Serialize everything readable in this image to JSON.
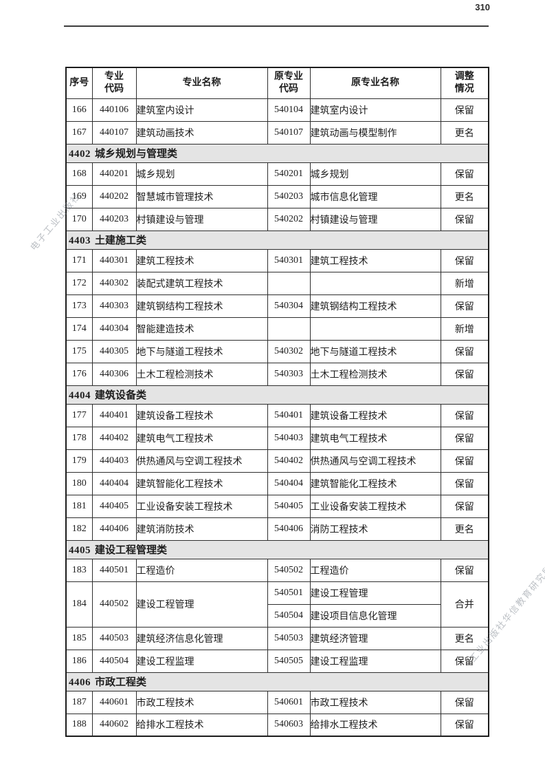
{
  "page": {
    "number": "310"
  },
  "watermark": {
    "left_text": "电子工业出版社",
    "right_text": "工业出版社华信教育研究所",
    "full_text": "电子工业出版社华信教育研究所",
    "color": "#7d848e"
  },
  "table": {
    "headers": [
      "序号",
      "专业\n代码",
      "专业名称",
      "原专业\n代码",
      "原专业名称",
      "调整\n情况"
    ],
    "section_gray": "#e4e4e4",
    "rows": [
      {
        "type": "data",
        "seq": "166",
        "code": "440106",
        "name": "建筑室内设计",
        "old_code": "540104",
        "old_name": "建筑室内设计",
        "status": "保留"
      },
      {
        "type": "data",
        "seq": "167",
        "code": "440107",
        "name": "建筑动画技术",
        "old_code": "540107",
        "old_name": "建筑动画与模型制作",
        "status": "更名"
      },
      {
        "type": "section",
        "num": "4402",
        "name": "城乡规划与管理类"
      },
      {
        "type": "data",
        "seq": "168",
        "code": "440201",
        "name": "城乡规划",
        "old_code": "540201",
        "old_name": "城乡规划",
        "status": "保留"
      },
      {
        "type": "data",
        "seq": "169",
        "code": "440202",
        "name": "智慧城市管理技术",
        "old_code": "540203",
        "old_name": "城市信息化管理",
        "status": "更名"
      },
      {
        "type": "data",
        "seq": "170",
        "code": "440203",
        "name": "村镇建设与管理",
        "old_code": "540202",
        "old_name": "村镇建设与管理",
        "status": "保留"
      },
      {
        "type": "section",
        "num": "4403",
        "name": "土建施工类"
      },
      {
        "type": "data",
        "seq": "171",
        "code": "440301",
        "name": "建筑工程技术",
        "old_code": "540301",
        "old_name": "建筑工程技术",
        "status": "保留"
      },
      {
        "type": "data",
        "seq": "172",
        "code": "440302",
        "name": "装配式建筑工程技术",
        "old_code": "",
        "old_name": "",
        "status": "新增"
      },
      {
        "type": "data",
        "seq": "173",
        "code": "440303",
        "name": "建筑钢结构工程技术",
        "old_code": "540304",
        "old_name": "建筑钢结构工程技术",
        "status": "保留"
      },
      {
        "type": "data",
        "seq": "174",
        "code": "440304",
        "name": "智能建造技术",
        "old_code": "",
        "old_name": "",
        "status": "新增"
      },
      {
        "type": "data",
        "seq": "175",
        "code": "440305",
        "name": "地下与隧道工程技术",
        "old_code": "540302",
        "old_name": "地下与隧道工程技术",
        "status": "保留"
      },
      {
        "type": "data",
        "seq": "176",
        "code": "440306",
        "name": "土木工程检测技术",
        "old_code": "540303",
        "old_name": "土木工程检测技术",
        "status": "保留"
      },
      {
        "type": "section",
        "num": "4404",
        "name": "建筑设备类"
      },
      {
        "type": "data",
        "seq": "177",
        "code": "440401",
        "name": "建筑设备工程技术",
        "old_code": "540401",
        "old_name": "建筑设备工程技术",
        "status": "保留"
      },
      {
        "type": "data",
        "seq": "178",
        "code": "440402",
        "name": "建筑电气工程技术",
        "old_code": "540403",
        "old_name": "建筑电气工程技术",
        "status": "保留"
      },
      {
        "type": "data",
        "seq": "179",
        "code": "440403",
        "name": "供热通风与空调工程技术",
        "old_code": "540402",
        "old_name": "供热通风与空调工程技术",
        "status": "保留"
      },
      {
        "type": "data",
        "seq": "180",
        "code": "440404",
        "name": "建筑智能化工程技术",
        "old_code": "540404",
        "old_name": "建筑智能化工程技术",
        "status": "保留"
      },
      {
        "type": "data",
        "seq": "181",
        "code": "440405",
        "name": "工业设备安装工程技术",
        "old_code": "540405",
        "old_name": "工业设备安装工程技术",
        "status": "保留"
      },
      {
        "type": "data",
        "seq": "182",
        "code": "440406",
        "name": "建筑消防技术",
        "old_code": "540406",
        "old_name": "消防工程技术",
        "status": "更名"
      },
      {
        "type": "section",
        "num": "4405",
        "name": "建设工程管理类"
      },
      {
        "type": "data",
        "seq": "183",
        "code": "440501",
        "name": "工程造价",
        "old_code": "540502",
        "old_name": "工程造价",
        "status": "保留"
      },
      {
        "type": "merged",
        "seq": "184",
        "code": "440502",
        "name": "建设工程管理",
        "status": "合并",
        "old": [
          {
            "old_code": "540501",
            "old_name": "建设工程管理"
          },
          {
            "old_code": "540504",
            "old_name": "建设项目信息化管理"
          }
        ]
      },
      {
        "type": "data",
        "seq": "185",
        "code": "440503",
        "name": "建筑经济信息化管理",
        "old_code": "540503",
        "old_name": "建筑经济管理",
        "status": "更名"
      },
      {
        "type": "data",
        "seq": "186",
        "code": "440504",
        "name": "建设工程监理",
        "old_code": "540505",
        "old_name": "建设工程监理",
        "status": "保留"
      },
      {
        "type": "section",
        "num": "4406",
        "name": "市政工程类"
      },
      {
        "type": "data",
        "seq": "187",
        "code": "440601",
        "name": "市政工程技术",
        "old_code": "540601",
        "old_name": "市政工程技术",
        "status": "保留"
      },
      {
        "type": "data",
        "seq": "188",
        "code": "440602",
        "name": "给排水工程技术",
        "old_code": "540603",
        "old_name": "给排水工程技术",
        "status": "保留"
      }
    ]
  }
}
